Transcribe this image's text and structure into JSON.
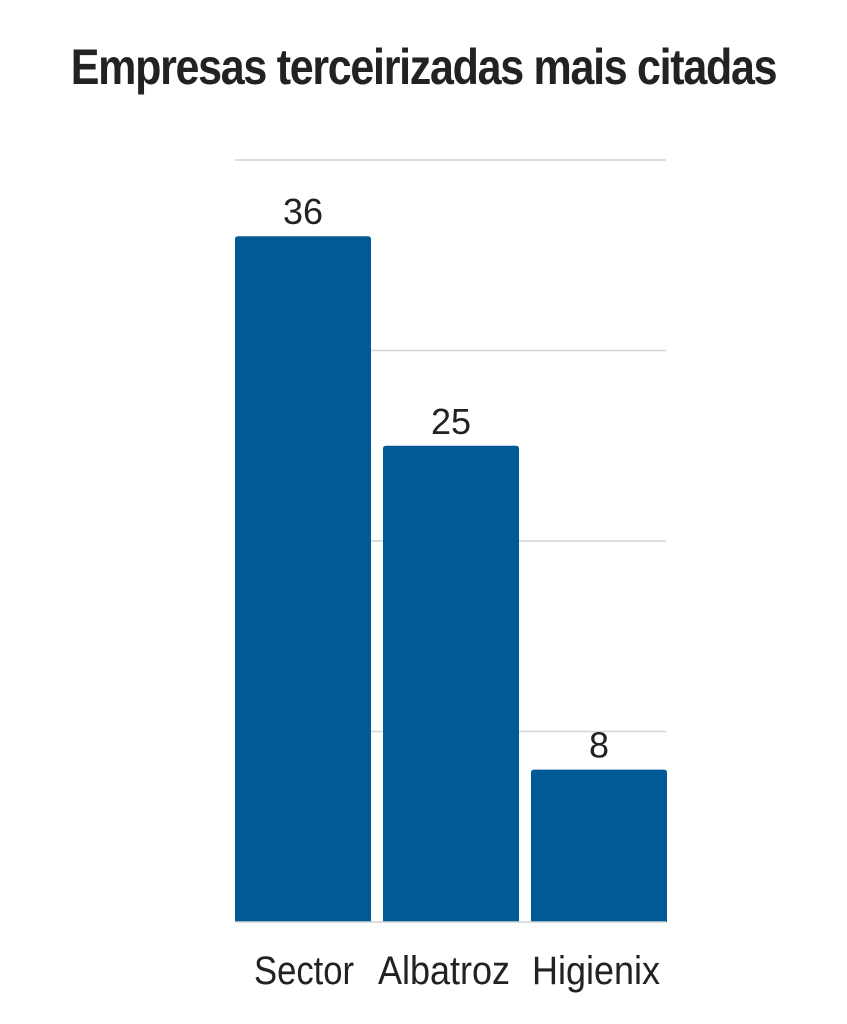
{
  "chart_data": {
    "type": "bar",
    "title": "Empresas terceirizadas mais citadas",
    "categories": [
      "Sector",
      "Albatroz",
      "Higienix"
    ],
    "values": [
      36,
      25,
      8
    ],
    "ylim": [
      0,
      40
    ],
    "grid": true,
    "colors": {
      "bar": "#005A96",
      "grid": "#D4D4D4",
      "text": "#222222"
    }
  }
}
